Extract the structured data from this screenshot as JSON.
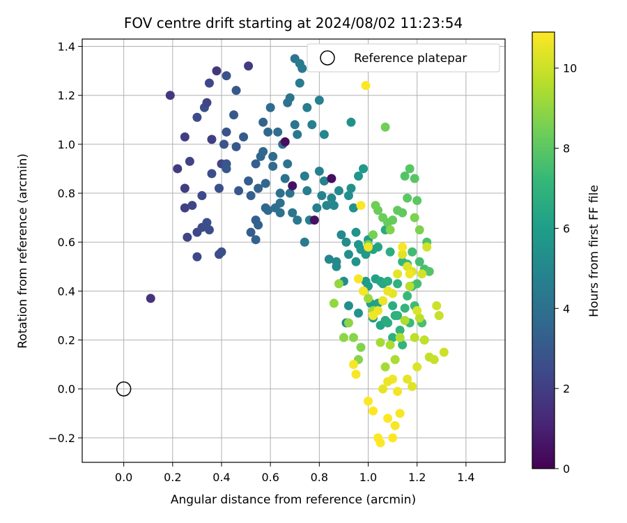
{
  "chart_data": {
    "type": "scatter",
    "title": "FOV centre drift starting at 2024/08/02 11:23:54",
    "xlabel": "Angular distance from reference (arcmin)",
    "ylabel": "Rotation from reference (arcmin)",
    "xlim": [
      -0.17,
      1.56
    ],
    "ylim": [
      -0.3,
      1.43
    ],
    "x_ticks": [
      "0.0",
      "0.2",
      "0.4",
      "0.6",
      "0.8",
      "1.0",
      "1.2",
      "1.4"
    ],
    "y_ticks": [
      "−0.2",
      "0.0",
      "0.2",
      "0.4",
      "0.6",
      "0.8",
      "1.0",
      "1.2",
      "1.4"
    ],
    "grid": true,
    "legend": {
      "placement": "top-right",
      "entries": [
        "Reference platepar"
      ]
    },
    "reference_point": {
      "x": 0.0,
      "y": 0.0,
      "name": "Reference platepar"
    },
    "colorbar": {
      "label": "Hours from first FF file",
      "range": [
        0,
        10.9
      ],
      "ticks": [
        "0",
        "2",
        "4",
        "6",
        "8",
        "10"
      ],
      "colormap": "viridis"
    },
    "points": [
      [
        0.11,
        0.37,
        1.6
      ],
      [
        0.19,
        1.2,
        1.8
      ],
      [
        0.22,
        0.9,
        1.9
      ],
      [
        0.25,
        0.82,
        2.0
      ],
      [
        0.25,
        1.03,
        2.0
      ],
      [
        0.25,
        0.74,
        2.1
      ],
      [
        0.27,
        0.93,
        2.2
      ],
      [
        0.26,
        0.62,
        2.3
      ],
      [
        0.28,
        0.75,
        2.3
      ],
      [
        0.3,
        0.64,
        2.4
      ],
      [
        0.3,
        0.54,
        2.4
      ],
      [
        0.3,
        1.11,
        2.5
      ],
      [
        0.32,
        0.66,
        2.5
      ],
      [
        0.32,
        0.79,
        2.5
      ],
      [
        0.34,
        0.68,
        2.6
      ],
      [
        0.35,
        0.65,
        2.6
      ],
      [
        0.33,
        1.15,
        2.6
      ],
      [
        0.34,
        1.17,
        2.2
      ],
      [
        0.35,
        1.25,
        2.4
      ],
      [
        0.36,
        1.02,
        2.0
      ],
      [
        0.36,
        0.88,
        2.6
      ],
      [
        0.38,
        1.3,
        1.8
      ],
      [
        0.39,
        0.55,
        2.6
      ],
      [
        0.4,
        0.56,
        2.7
      ],
      [
        0.39,
        0.82,
        2.7
      ],
      [
        0.4,
        0.92,
        2.3
      ],
      [
        0.42,
        1.28,
        2.8
      ],
      [
        0.42,
        1.05,
        2.8
      ],
      [
        0.41,
        1.0,
        2.9
      ],
      [
        0.42,
        0.92,
        2.9
      ],
      [
        0.42,
        0.9,
        3.0
      ],
      [
        0.45,
        1.12,
        3.0
      ],
      [
        0.46,
        0.99,
        3.0
      ],
      [
        0.46,
        1.22,
        3.0
      ],
      [
        0.47,
        0.81,
        3.0
      ],
      [
        0.49,
        1.03,
        3.1
      ],
      [
        0.51,
        0.85,
        3.2
      ],
      [
        0.51,
        1.32,
        1.9
      ],
      [
        0.52,
        0.64,
        3.2
      ],
      [
        0.52,
        0.79,
        3.3
      ],
      [
        0.54,
        0.92,
        3.3
      ],
      [
        0.54,
        0.69,
        3.3
      ],
      [
        0.54,
        0.61,
        3.4
      ],
      [
        0.55,
        0.67,
        3.4
      ],
      [
        0.55,
        0.82,
        3.4
      ],
      [
        0.56,
        0.95,
        3.5
      ],
      [
        0.57,
        1.09,
        3.5
      ],
      [
        0.57,
        0.97,
        3.6
      ],
      [
        0.58,
        0.84,
        3.6
      ],
      [
        0.58,
        0.74,
        3.6
      ],
      [
        0.59,
        0.73,
        3.7
      ],
      [
        0.59,
        1.05,
        3.7
      ],
      [
        0.6,
        1.15,
        3.8
      ],
      [
        0.61,
        0.95,
        3.8
      ],
      [
        0.61,
        0.91,
        3.8
      ],
      [
        0.62,
        0.74,
        3.9
      ],
      [
        0.63,
        1.05,
        3.9
      ],
      [
        0.64,
        0.8,
        4.0
      ],
      [
        0.64,
        0.76,
        4.0
      ],
      [
        0.64,
        0.72,
        4.0
      ],
      [
        0.65,
        1.0,
        4.1
      ],
      [
        0.66,
        1.01,
        0.4
      ],
      [
        0.66,
        0.86,
        4.1
      ],
      [
        0.67,
        1.17,
        4.1
      ],
      [
        0.67,
        0.92,
        4.2
      ],
      [
        0.68,
        1.19,
        4.2
      ],
      [
        0.68,
        0.8,
        4.2
      ],
      [
        0.69,
        0.83,
        0.5
      ],
      [
        0.69,
        0.72,
        4.3
      ],
      [
        0.7,
        1.08,
        4.3
      ],
      [
        0.7,
        1.35,
        4.3
      ],
      [
        0.71,
        0.69,
        4.4
      ],
      [
        0.71,
        1.04,
        4.4
      ],
      [
        0.72,
        1.25,
        4.5
      ],
      [
        0.72,
        1.33,
        4.5
      ],
      [
        0.73,
        1.31,
        4.5
      ],
      [
        0.74,
        0.6,
        4.5
      ],
      [
        0.74,
        0.87,
        4.6
      ],
      [
        0.75,
        0.81,
        4.6
      ],
      [
        0.75,
        1.15,
        4.6
      ],
      [
        0.76,
        0.69,
        4.7
      ],
      [
        0.77,
        1.08,
        4.7
      ],
      [
        0.78,
        0.69,
        0.5
      ],
      [
        0.79,
        0.74,
        4.7
      ],
      [
        0.8,
        1.18,
        4.8
      ],
      [
        0.8,
        0.89,
        4.8
      ],
      [
        0.81,
        0.79,
        4.8
      ],
      [
        0.82,
        0.85,
        4.9
      ],
      [
        0.82,
        1.04,
        5.0
      ],
      [
        0.83,
        0.75,
        5.0
      ],
      [
        0.84,
        0.53,
        5.0
      ],
      [
        0.85,
        0.86,
        0.4
      ],
      [
        0.85,
        0.78,
        5.0
      ],
      [
        0.86,
        0.75,
        5.1
      ],
      [
        0.87,
        0.52,
        5.1
      ],
      [
        0.87,
        0.5,
        5.2
      ],
      [
        0.88,
        0.81,
        5.2
      ],
      [
        0.89,
        0.63,
        5.2
      ],
      [
        0.9,
        0.44,
        5.3
      ],
      [
        0.91,
        0.6,
        5.3
      ],
      [
        0.91,
        0.27,
        5.3
      ],
      [
        0.92,
        0.34,
        5.4
      ],
      [
        0.92,
        0.79,
        5.4
      ],
      [
        0.92,
        0.55,
        5.4
      ],
      [
        0.93,
        0.82,
        5.5
      ],
      [
        0.93,
        1.09,
        5.5
      ],
      [
        0.94,
        0.74,
        5.5
      ],
      [
        0.95,
        0.52,
        5.6
      ],
      [
        0.95,
        0.64,
        5.6
      ],
      [
        0.96,
        0.31,
        5.6
      ],
      [
        0.96,
        0.87,
        5.7
      ],
      [
        0.96,
        0.59,
        5.7
      ],
      [
        0.97,
        0.57,
        5.8
      ],
      [
        0.98,
        0.9,
        5.8
      ],
      [
        0.99,
        0.44,
        5.9
      ],
      [
        0.99,
        0.55,
        5.9
      ],
      [
        1.0,
        0.61,
        6.0
      ],
      [
        1.0,
        0.42,
        6.0
      ],
      [
        1.01,
        0.35,
        6.1
      ],
      [
        1.02,
        0.29,
        6.1
      ],
      [
        1.02,
        0.57,
        6.2
      ],
      [
        1.03,
        0.45,
        6.2
      ],
      [
        1.04,
        0.35,
        6.3
      ],
      [
        1.04,
        0.58,
        6.3
      ],
      [
        1.05,
        0.26,
        6.4
      ],
      [
        1.05,
        0.44,
        6.4
      ],
      [
        1.06,
        0.43,
        6.5
      ],
      [
        1.06,
        0.36,
        6.5
      ],
      [
        1.07,
        0.28,
        6.6
      ],
      [
        1.07,
        0.65,
        6.6
      ],
      [
        1.08,
        0.44,
        6.7
      ],
      [
        1.08,
        0.27,
        6.7
      ],
      [
        1.09,
        0.56,
        6.8
      ],
      [
        1.1,
        0.34,
        6.8
      ],
      [
        1.1,
        0.21,
        6.9
      ],
      [
        1.11,
        0.3,
        6.9
      ],
      [
        1.12,
        0.43,
        7.0
      ],
      [
        1.12,
        0.3,
        7.0
      ],
      [
        1.13,
        0.24,
        7.1
      ],
      [
        1.14,
        0.18,
        7.1
      ],
      [
        1.14,
        0.52,
        7.2
      ],
      [
        1.15,
        0.33,
        7.2
      ],
      [
        1.16,
        0.38,
        7.3
      ],
      [
        1.16,
        0.51,
        7.3
      ],
      [
        1.17,
        0.27,
        7.4
      ],
      [
        1.18,
        0.42,
        7.4
      ],
      [
        1.18,
        0.56,
        7.5
      ],
      [
        1.19,
        0.34,
        7.5
      ],
      [
        1.2,
        0.43,
        7.6
      ],
      [
        1.21,
        0.52,
        7.6
      ],
      [
        1.22,
        0.27,
        7.7
      ],
      [
        1.23,
        0.49,
        7.7
      ],
      [
        1.23,
        0.2,
        7.8
      ],
      [
        1.24,
        0.6,
        7.8
      ],
      [
        1.25,
        0.48,
        7.9
      ],
      [
        1.15,
        0.87,
        7.9
      ],
      [
        1.17,
        0.9,
        8.0
      ],
      [
        1.19,
        0.86,
        8.0
      ],
      [
        1.2,
        0.77,
        8.1
      ],
      [
        1.16,
        0.78,
        8.1
      ],
      [
        1.14,
        0.72,
        8.2
      ],
      [
        1.12,
        0.73,
        8.2
      ],
      [
        1.1,
        0.69,
        8.3
      ],
      [
        1.08,
        0.68,
        8.3
      ],
      [
        1.06,
        0.7,
        8.4
      ],
      [
        1.04,
        0.73,
        8.4
      ],
      [
        1.03,
        0.75,
        8.5
      ],
      [
        1.07,
        1.07,
        8.5
      ],
      [
        1.02,
        0.63,
        8.6
      ],
      [
        1.0,
        0.59,
        8.6
      ],
      [
        1.19,
        0.7,
        8.7
      ],
      [
        1.21,
        0.65,
        8.7
      ],
      [
        1.09,
        0.65,
        8.8
      ],
      [
        0.97,
        0.17,
        8.8
      ],
      [
        0.96,
        0.12,
        8.9
      ],
      [
        0.94,
        0.21,
        8.9
      ],
      [
        0.92,
        0.27,
        9.0
      ],
      [
        0.9,
        0.21,
        9.0
      ],
      [
        0.88,
        0.43,
        9.1
      ],
      [
        0.86,
        0.35,
        9.1
      ],
      [
        0.98,
        0.4,
        9.2
      ],
      [
        1.0,
        0.37,
        9.3
      ],
      [
        1.02,
        0.32,
        9.3
      ],
      [
        1.05,
        0.19,
        9.4
      ],
      [
        1.07,
        0.09,
        9.4
      ],
      [
        1.09,
        0.18,
        9.5
      ],
      [
        1.11,
        0.12,
        9.5
      ],
      [
        1.13,
        0.21,
        9.6
      ],
      [
        1.15,
        0.28,
        9.6
      ],
      [
        1.17,
        0.42,
        9.7
      ],
      [
        1.19,
        0.21,
        9.8
      ],
      [
        1.21,
        0.29,
        9.8
      ],
      [
        1.23,
        0.2,
        9.9
      ],
      [
        1.25,
        0.13,
        9.9
      ],
      [
        1.27,
        0.12,
        10.0
      ],
      [
        1.29,
        0.3,
        10.0
      ],
      [
        1.31,
        0.15,
        10.1
      ],
      [
        1.28,
        0.34,
        10.1
      ],
      [
        1.24,
        0.58,
        10.2
      ],
      [
        1.22,
        0.47,
        10.2
      ],
      [
        1.2,
        0.32,
        10.3
      ],
      [
        1.18,
        0.48,
        10.3
      ],
      [
        1.16,
        0.5,
        10.4
      ],
      [
        1.14,
        0.55,
        10.4
      ],
      [
        1.12,
        0.47,
        10.5
      ],
      [
        1.1,
        0.39,
        10.5
      ],
      [
        1.08,
        0.4,
        10.6
      ],
      [
        1.06,
        0.36,
        10.6
      ],
      [
        1.04,
        0.32,
        10.6
      ],
      [
        1.02,
        0.3,
        10.7
      ],
      [
        1.0,
        0.58,
        10.7
      ],
      [
        0.98,
        0.4,
        10.8
      ],
      [
        0.96,
        0.45,
        10.8
      ],
      [
        0.94,
        0.1,
        10.8
      ],
      [
        0.95,
        0.06,
        10.8
      ],
      [
        1.0,
        -0.05,
        10.9
      ],
      [
        1.02,
        -0.09,
        10.9
      ],
      [
        1.04,
        -0.2,
        10.9
      ],
      [
        1.05,
        -0.22,
        10.9
      ],
      [
        1.08,
        -0.12,
        10.9
      ],
      [
        1.1,
        -0.2,
        10.9
      ],
      [
        1.11,
        -0.15,
        10.8
      ],
      [
        1.13,
        -0.1,
        10.8
      ],
      [
        1.12,
        -0.01,
        10.7
      ],
      [
        1.1,
        0.04,
        10.7
      ],
      [
        1.08,
        0.03,
        10.6
      ],
      [
        1.06,
        0.0,
        10.5
      ],
      [
        1.16,
        0.04,
        10.5
      ],
      [
        1.18,
        0.01,
        10.4
      ],
      [
        1.2,
        0.09,
        10.3
      ],
      [
        0.99,
        1.24,
        10.9
      ],
      [
        0.97,
        0.75,
        10.9
      ],
      [
        1.14,
        0.58,
        10.8
      ],
      [
        1.17,
        0.47,
        10.7
      ]
    ]
  }
}
